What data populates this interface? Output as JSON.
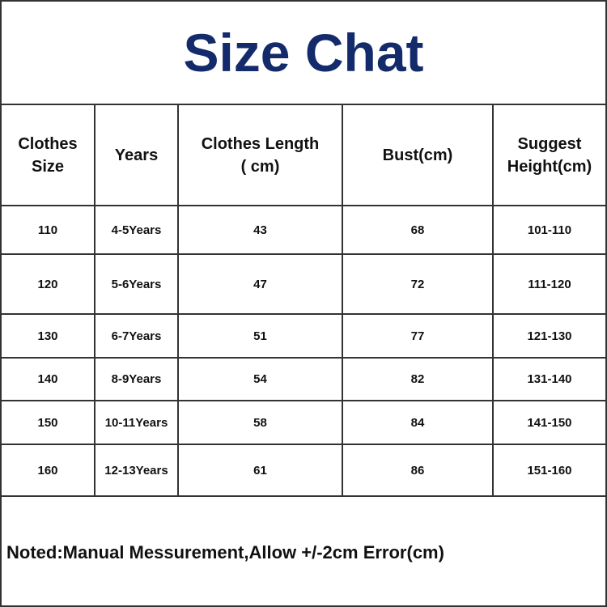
{
  "title": "Size Chat",
  "title_color": "#132a6b",
  "headers": [
    "Clothes\nSize",
    "Years",
    "Clothes Length\n( cm)",
    "Bust(cm)",
    "Suggest\nHeight(cm)"
  ],
  "rows": [
    [
      "110",
      "4-5Years",
      "43",
      "68",
      "101-110"
    ],
    [
      "120",
      "5-6Years",
      "47",
      "72",
      "111-120"
    ],
    [
      "130",
      "6-7Years",
      "51",
      "77",
      "121-130"
    ],
    [
      "140",
      "8-9Years",
      "54",
      "82",
      "131-140"
    ],
    [
      "150",
      "10-11Years",
      "58",
      "84",
      "141-150"
    ],
    [
      "160",
      "12-13Years",
      "61",
      "86",
      "151-160"
    ]
  ],
  "note": "Noted:Manual Messurement,Allow +/-2cm Error(cm)"
}
